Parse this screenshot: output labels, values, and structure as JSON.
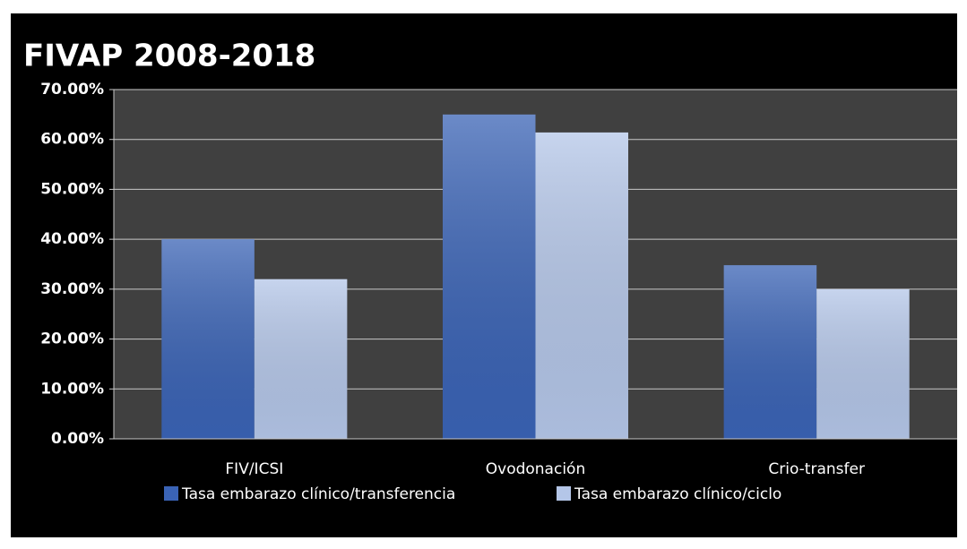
{
  "chart_data": {
    "type": "bar",
    "title": "FIVAP 2008-2018",
    "categories": [
      "FIV/ICSI",
      "Ovodonación",
      "Crio-transfer"
    ],
    "series": [
      {
        "name": "Tasa embarazo clínico/transferencia",
        "color": "#3a63b5",
        "values": [
          40,
          65,
          34.8
        ]
      },
      {
        "name": "Tasa embarazo clínico/ciclo",
        "color": "#b4c6e8",
        "values": [
          32,
          61.4,
          30
        ]
      }
    ],
    "ylim": [
      0,
      70
    ],
    "yticks": [
      {
        "value": 0,
        "label": "0.00%"
      },
      {
        "value": 10,
        "label": "10.00%"
      },
      {
        "value": 20,
        "label": "20.00%"
      },
      {
        "value": 30,
        "label": "30.00%"
      },
      {
        "value": 40,
        "label": "40.00%"
      },
      {
        "value": 50,
        "label": "50.00%"
      },
      {
        "value": 60,
        "label": "60.00%"
      },
      {
        "value": 70,
        "label": "70.00%"
      }
    ],
    "grid": true,
    "legend": "bottom"
  }
}
